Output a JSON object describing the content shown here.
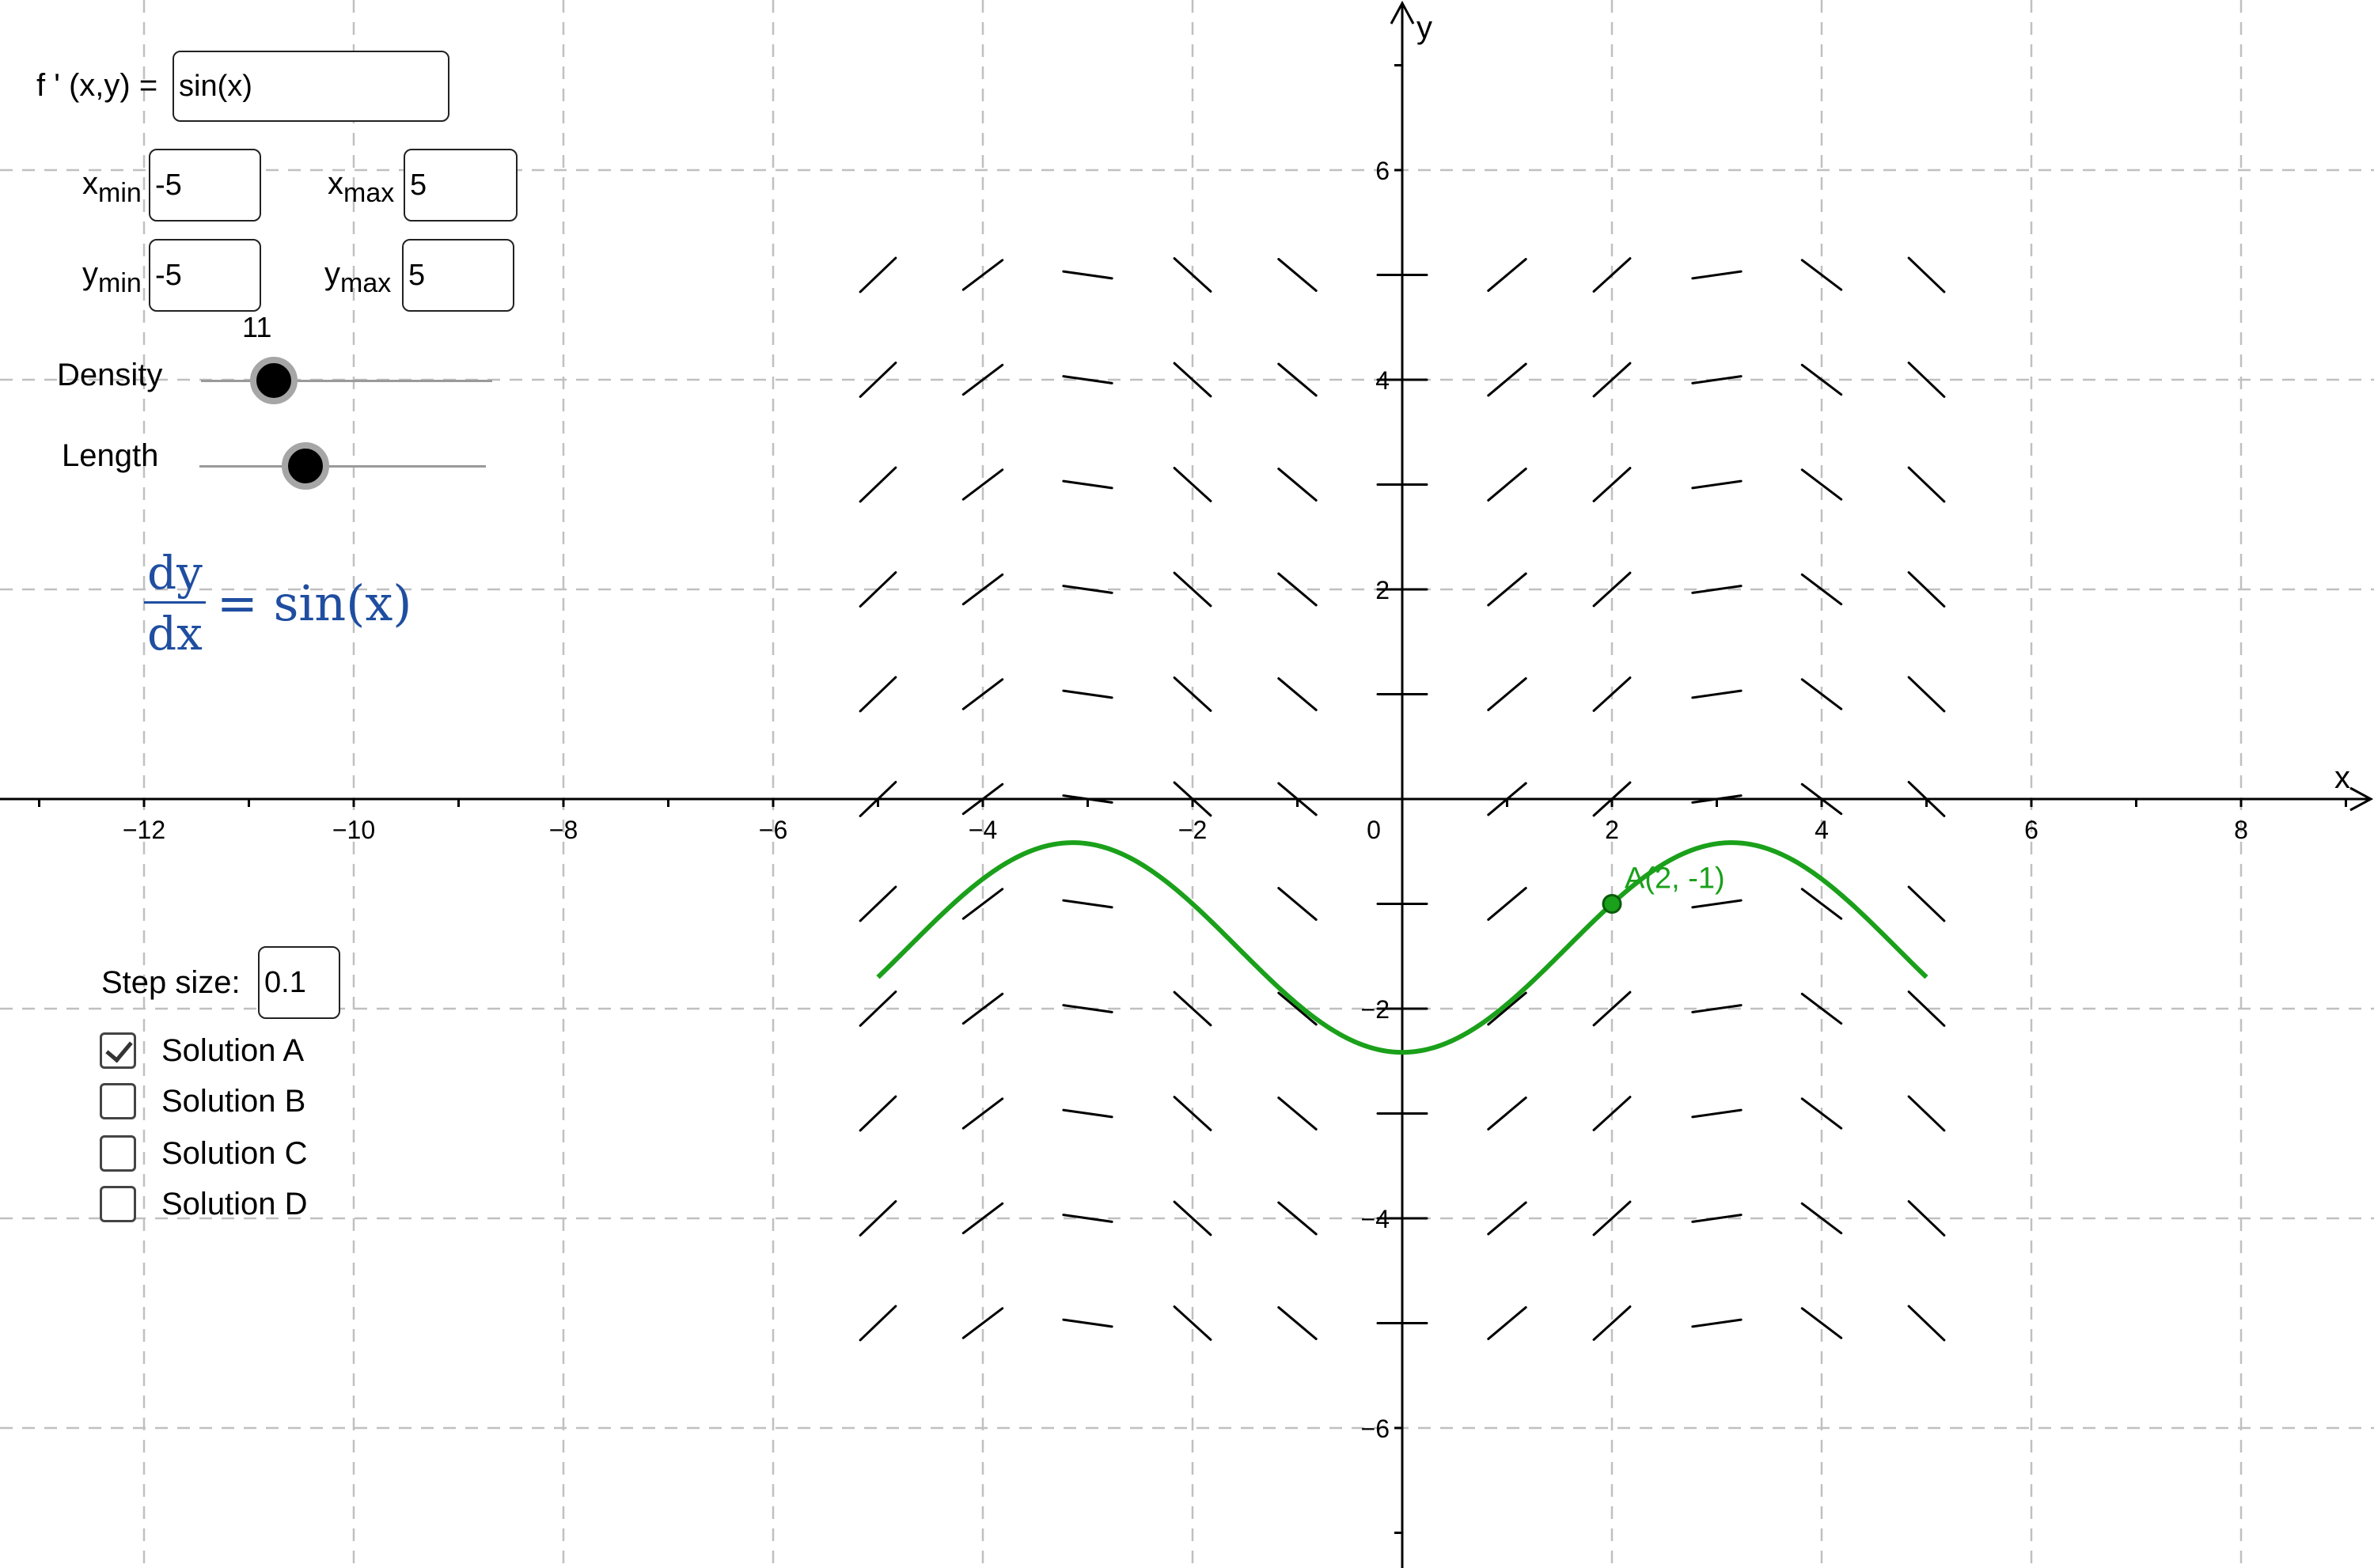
{
  "graph": {
    "x_range": [
      -14,
      9.1
    ],
    "y_range": [
      -7.5,
      7.5
    ],
    "x_ticks": [
      -12,
      -10,
      -8,
      -6,
      -4,
      -2,
      0,
      2,
      4,
      6,
      8
    ],
    "y_ticks": [
      -6,
      -4,
      -2,
      2,
      4,
      6
    ],
    "x_axis_name": "x",
    "y_axis_name": "y",
    "field_domain": {
      "x": [
        -5,
        5
      ],
      "y": [
        -5,
        5
      ],
      "n": 11
    },
    "slope_function": "sin(x)",
    "solution": {
      "through": [
        2,
        -1
      ],
      "x_range": [
        -5,
        5
      ],
      "color": "#1aa01a"
    },
    "point_label": "A(2, -1)",
    "grid": true
  },
  "panel": {
    "fprime_label": "f ' (x,y) =",
    "fprime_value": "sin(x)",
    "x_letter": "x",
    "y_letter": "y",
    "min_sub": "min",
    "max_sub": "max",
    "xmin_value": "-5",
    "xmax_value": "5",
    "ymin_value": "-5",
    "ymax_value": "5",
    "density_label": "Density",
    "density_value": "11",
    "density_fraction": 0.25,
    "length_label": "Length",
    "length_fraction": 0.37,
    "step_label": "Step size:",
    "step_value": "0.1",
    "equation_num": "dy",
    "equation_den": "dx",
    "equation_rhs": "= sin(x)",
    "solutions": [
      {
        "label": "Solution A",
        "checked": true
      },
      {
        "label": "Solution B",
        "checked": false
      },
      {
        "label": "Solution C",
        "checked": false
      },
      {
        "label": "Solution D",
        "checked": false
      }
    ]
  }
}
